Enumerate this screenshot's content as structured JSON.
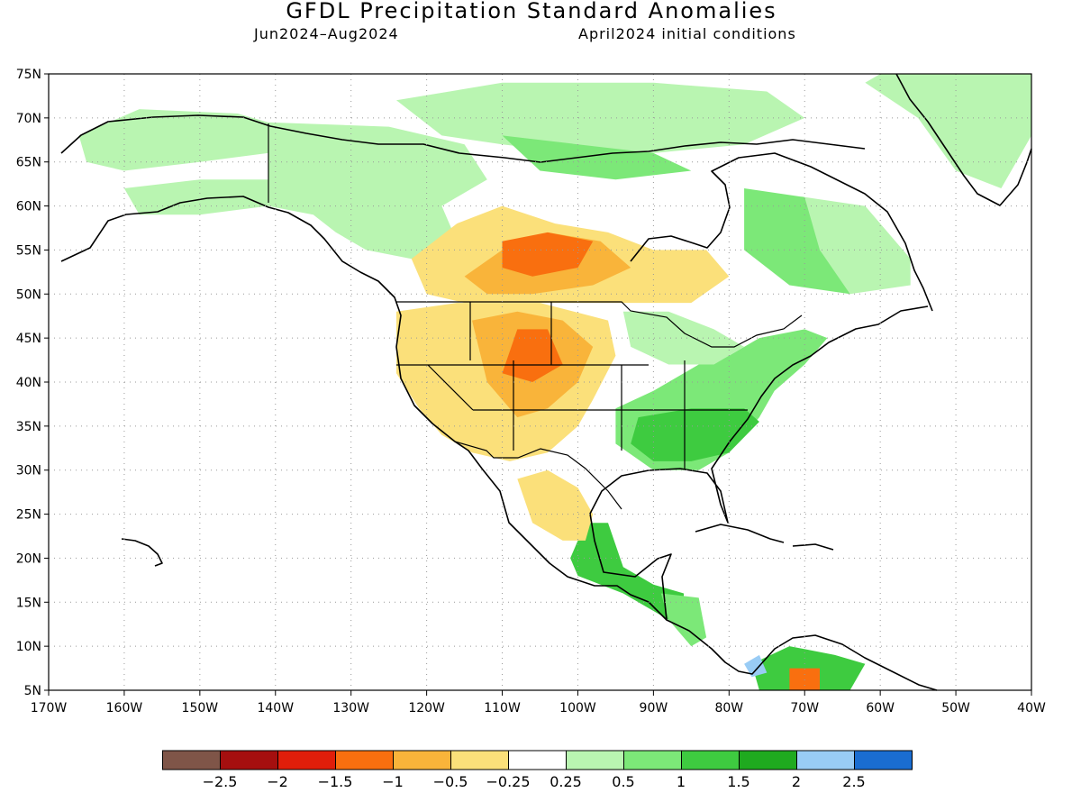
{
  "title": "GFDL Precipitation Standard Anomalies",
  "subtitle_left": "Jun2024–Aug2024",
  "subtitle_right": "April2024 initial conditions",
  "axes": {
    "lon_range": [
      -170,
      -40
    ],
    "lat_range": [
      5,
      75
    ],
    "x_ticks": [
      "170W",
      "160W",
      "150W",
      "140W",
      "130W",
      "120W",
      "110W",
      "100W",
      "90W",
      "80W",
      "70W",
      "60W",
      "50W",
      "40W"
    ],
    "y_ticks": [
      "5N",
      "10N",
      "15N",
      "20N",
      "25N",
      "30N",
      "35N",
      "40N",
      "45N",
      "50N",
      "55N",
      "60N",
      "65N",
      "70N",
      "75N"
    ],
    "grid": "dotted"
  },
  "colorbar": {
    "colors": [
      "#7f5548",
      "#a50f0f",
      "#e01e0a",
      "#f96f0f",
      "#f9b43a",
      "#fbe07a",
      "#ffffff",
      "#b9f5b1",
      "#7ce878",
      "#3ecb40",
      "#1faa1f",
      "#99ccf5",
      "#1a6dd1"
    ],
    "labels": [
      "−2.5",
      "−2",
      "−1.5",
      "−1",
      "−0.5",
      "−0.25",
      "0.25",
      "0.5",
      "1",
      "1.5",
      "2",
      "2.5"
    ]
  },
  "anomaly_regions": [
    {
      "name": "alaska-north-wet",
      "level": "0.5",
      "points": [
        [
          -166,
          68
        ],
        [
          -158,
          71
        ],
        [
          -145,
          70.5
        ],
        [
          -141,
          69.5
        ],
        [
          -141,
          66
        ],
        [
          -150,
          65
        ],
        [
          -160,
          64
        ],
        [
          -165,
          65
        ]
      ]
    },
    {
      "name": "alaska-interior-wet",
      "level": "0.25",
      "points": [
        [
          -160,
          62
        ],
        [
          -150,
          63
        ],
        [
          -141,
          63
        ],
        [
          -141,
          60
        ],
        [
          -150,
          59
        ],
        [
          -158,
          59
        ]
      ]
    },
    {
      "name": "yukon-wet",
      "level": "0.5",
      "points": [
        [
          -141,
          69.5
        ],
        [
          -125,
          69
        ],
        [
          -115,
          67
        ],
        [
          -112,
          63
        ],
        [
          -118,
          60
        ],
        [
          -125,
          58
        ],
        [
          -135,
          59
        ],
        [
          -141,
          60
        ]
      ]
    },
    {
      "name": "bc-wet",
      "level": "0.5",
      "points": [
        [
          -135,
          59
        ],
        [
          -125,
          60
        ],
        [
          -118,
          60
        ],
        [
          -116,
          56
        ],
        [
          -122,
          54
        ],
        [
          -128,
          55
        ],
        [
          -132,
          57
        ]
      ]
    },
    {
      "name": "arctic-archipelago-wet",
      "level": "0.5",
      "points": [
        [
          -124,
          72
        ],
        [
          -110,
          74
        ],
        [
          -90,
          74
        ],
        [
          -75,
          73
        ],
        [
          -70,
          70
        ],
        [
          -78,
          67
        ],
        [
          -90,
          66
        ],
        [
          -100,
          66
        ],
        [
          -110,
          67
        ],
        [
          -118,
          68
        ]
      ]
    },
    {
      "name": "nunavut-wet",
      "level": "1",
      "points": [
        [
          -110,
          68
        ],
        [
          -100,
          67
        ],
        [
          -90,
          66
        ],
        [
          -85,
          64
        ],
        [
          -95,
          63
        ],
        [
          -105,
          64
        ]
      ]
    },
    {
      "name": "quebec-wet",
      "level": "1",
      "points": [
        [
          -78,
          62
        ],
        [
          -70,
          61
        ],
        [
          -62,
          57
        ],
        [
          -58,
          52
        ],
        [
          -64,
          50
        ],
        [
          -72,
          51
        ],
        [
          -78,
          55
        ]
      ]
    },
    {
      "name": "labrador-wet",
      "level": "0.5",
      "points": [
        [
          -70,
          61
        ],
        [
          -62,
          60
        ],
        [
          -56,
          54
        ],
        [
          -56,
          51
        ],
        [
          -64,
          50
        ],
        [
          -68,
          55
        ]
      ]
    },
    {
      "name": "east-us-wet",
      "level": "1",
      "points": [
        [
          -95,
          37
        ],
        [
          -90,
          39
        ],
        [
          -84,
          42
        ],
        [
          -80,
          43
        ],
        [
          -76,
          45
        ],
        [
          -70,
          46
        ],
        [
          -67,
          45
        ],
        [
          -70,
          42
        ],
        [
          -74,
          39
        ],
        [
          -76,
          36
        ],
        [
          -80,
          32
        ],
        [
          -84,
          30
        ],
        [
          -90,
          30
        ],
        [
          -95,
          33
        ]
      ]
    },
    {
      "name": "southeast-us-wet",
      "level": "1.5",
      "points": [
        [
          -92,
          36
        ],
        [
          -85,
          37
        ],
        [
          -78,
          37
        ],
        [
          -76,
          35.5
        ],
        [
          -80,
          32
        ],
        [
          -85,
          31
        ],
        [
          -90,
          31
        ],
        [
          -93,
          33
        ]
      ]
    },
    {
      "name": "great-lakes-wet",
      "level": "0.5",
      "points": [
        [
          -94,
          48
        ],
        [
          -88,
          48
        ],
        [
          -82,
          46
        ],
        [
          -78,
          44
        ],
        [
          -82,
          42
        ],
        [
          -88,
          42
        ],
        [
          -93,
          44
        ]
      ]
    },
    {
      "name": "greenland-wet",
      "level": "0.5",
      "points": [
        [
          -60,
          75
        ],
        [
          -45,
          75
        ],
        [
          -40,
          75
        ],
        [
          -40,
          68
        ],
        [
          -44,
          62
        ],
        [
          -50,
          64
        ],
        [
          -55,
          70
        ],
        [
          -62,
          74
        ]
      ]
    },
    {
      "name": "mexico-wet",
      "level": "1.5",
      "points": [
        [
          -99,
          24
        ],
        [
          -96,
          24
        ],
        [
          -94,
          19
        ],
        [
          -90,
          17
        ],
        [
          -86,
          16
        ],
        [
          -86,
          14
        ],
        [
          -88,
          13
        ],
        [
          -94,
          16
        ],
        [
          -100,
          18
        ],
        [
          -101,
          20
        ]
      ]
    },
    {
      "name": "central-america-wet",
      "level": "1",
      "points": [
        [
          -89,
          16
        ],
        [
          -84,
          15.5
        ],
        [
          -83,
          11
        ],
        [
          -85,
          10
        ],
        [
          -88,
          13
        ]
      ]
    },
    {
      "name": "colombia-wet",
      "level": "1.5",
      "points": [
        [
          -77,
          8
        ],
        [
          -72,
          10
        ],
        [
          -66,
          9
        ],
        [
          -62,
          8
        ],
        [
          -64,
          5
        ],
        [
          -76,
          5
        ]
      ]
    },
    {
      "name": "colombia-blue",
      "level": "2.5",
      "points": [
        [
          -78,
          8
        ],
        [
          -76,
          9
        ],
        [
          -75,
          7
        ],
        [
          -77,
          6.5
        ]
      ]
    },
    {
      "name": "west-us-dry",
      "level": "-0.5",
      "points": [
        [
          -124,
          48
        ],
        [
          -116,
          49
        ],
        [
          -105,
          49
        ],
        [
          -96,
          47
        ],
        [
          -95,
          43
        ],
        [
          -98,
          38
        ],
        [
          -100,
          35
        ],
        [
          -104,
          32
        ],
        [
          -109,
          31
        ],
        [
          -114,
          32
        ],
        [
          -118,
          34
        ],
        [
          -121,
          37
        ],
        [
          -124,
          41
        ]
      ]
    },
    {
      "name": "canada-prairie-dry",
      "level": "-0.5",
      "points": [
        [
          -122,
          54
        ],
        [
          -116,
          58
        ],
        [
          -110,
          60
        ],
        [
          -103,
          58
        ],
        [
          -96,
          57
        ],
        [
          -90,
          55
        ],
        [
          -83,
          55
        ],
        [
          -80,
          52
        ],
        [
          -85,
          49
        ],
        [
          -95,
          49
        ],
        [
          -104,
          49
        ],
        [
          -115,
          49
        ],
        [
          -120,
          50
        ]
      ]
    },
    {
      "name": "prairie-core-dry",
      "level": "-1",
      "points": [
        [
          -115,
          52
        ],
        [
          -110,
          55
        ],
        [
          -104,
          57
        ],
        [
          -97,
          56
        ],
        [
          -93,
          53
        ],
        [
          -98,
          51
        ],
        [
          -106,
          50
        ],
        [
          -112,
          50
        ]
      ]
    },
    {
      "name": "plains-core-dry",
      "level": "-1",
      "points": [
        [
          -114,
          47
        ],
        [
          -108,
          48
        ],
        [
          -102,
          47
        ],
        [
          -98,
          44
        ],
        [
          -100,
          40
        ],
        [
          -104,
          37
        ],
        [
          -108,
          36
        ],
        [
          -112,
          40
        ]
      ]
    },
    {
      "name": "rockies-dry",
      "level": "-1.5",
      "points": [
        [
          -108,
          46
        ],
        [
          -104,
          46
        ],
        [
          -102,
          42
        ],
        [
          -106,
          40
        ],
        [
          -110,
          41
        ]
      ]
    },
    {
      "name": "saskatchewan-dry",
      "level": "-1.5",
      "points": [
        [
          -110,
          56
        ],
        [
          -104,
          57
        ],
        [
          -98,
          56
        ],
        [
          -100,
          53
        ],
        [
          -106,
          52
        ],
        [
          -110,
          53
        ]
      ]
    },
    {
      "name": "mexico-plateau-dry",
      "level": "-0.5",
      "points": [
        [
          -108,
          29
        ],
        [
          -104,
          30
        ],
        [
          -100,
          28
        ],
        [
          -98,
          25
        ],
        [
          -99,
          22
        ],
        [
          -102,
          22
        ],
        [
          -106,
          24
        ]
      ]
    },
    {
      "name": "venezuela-dry",
      "level": "-1.5",
      "points": [
        [
          -72,
          7.5
        ],
        [
          -68,
          7.5
        ],
        [
          -68,
          5
        ],
        [
          -72,
          5
        ]
      ]
    }
  ]
}
